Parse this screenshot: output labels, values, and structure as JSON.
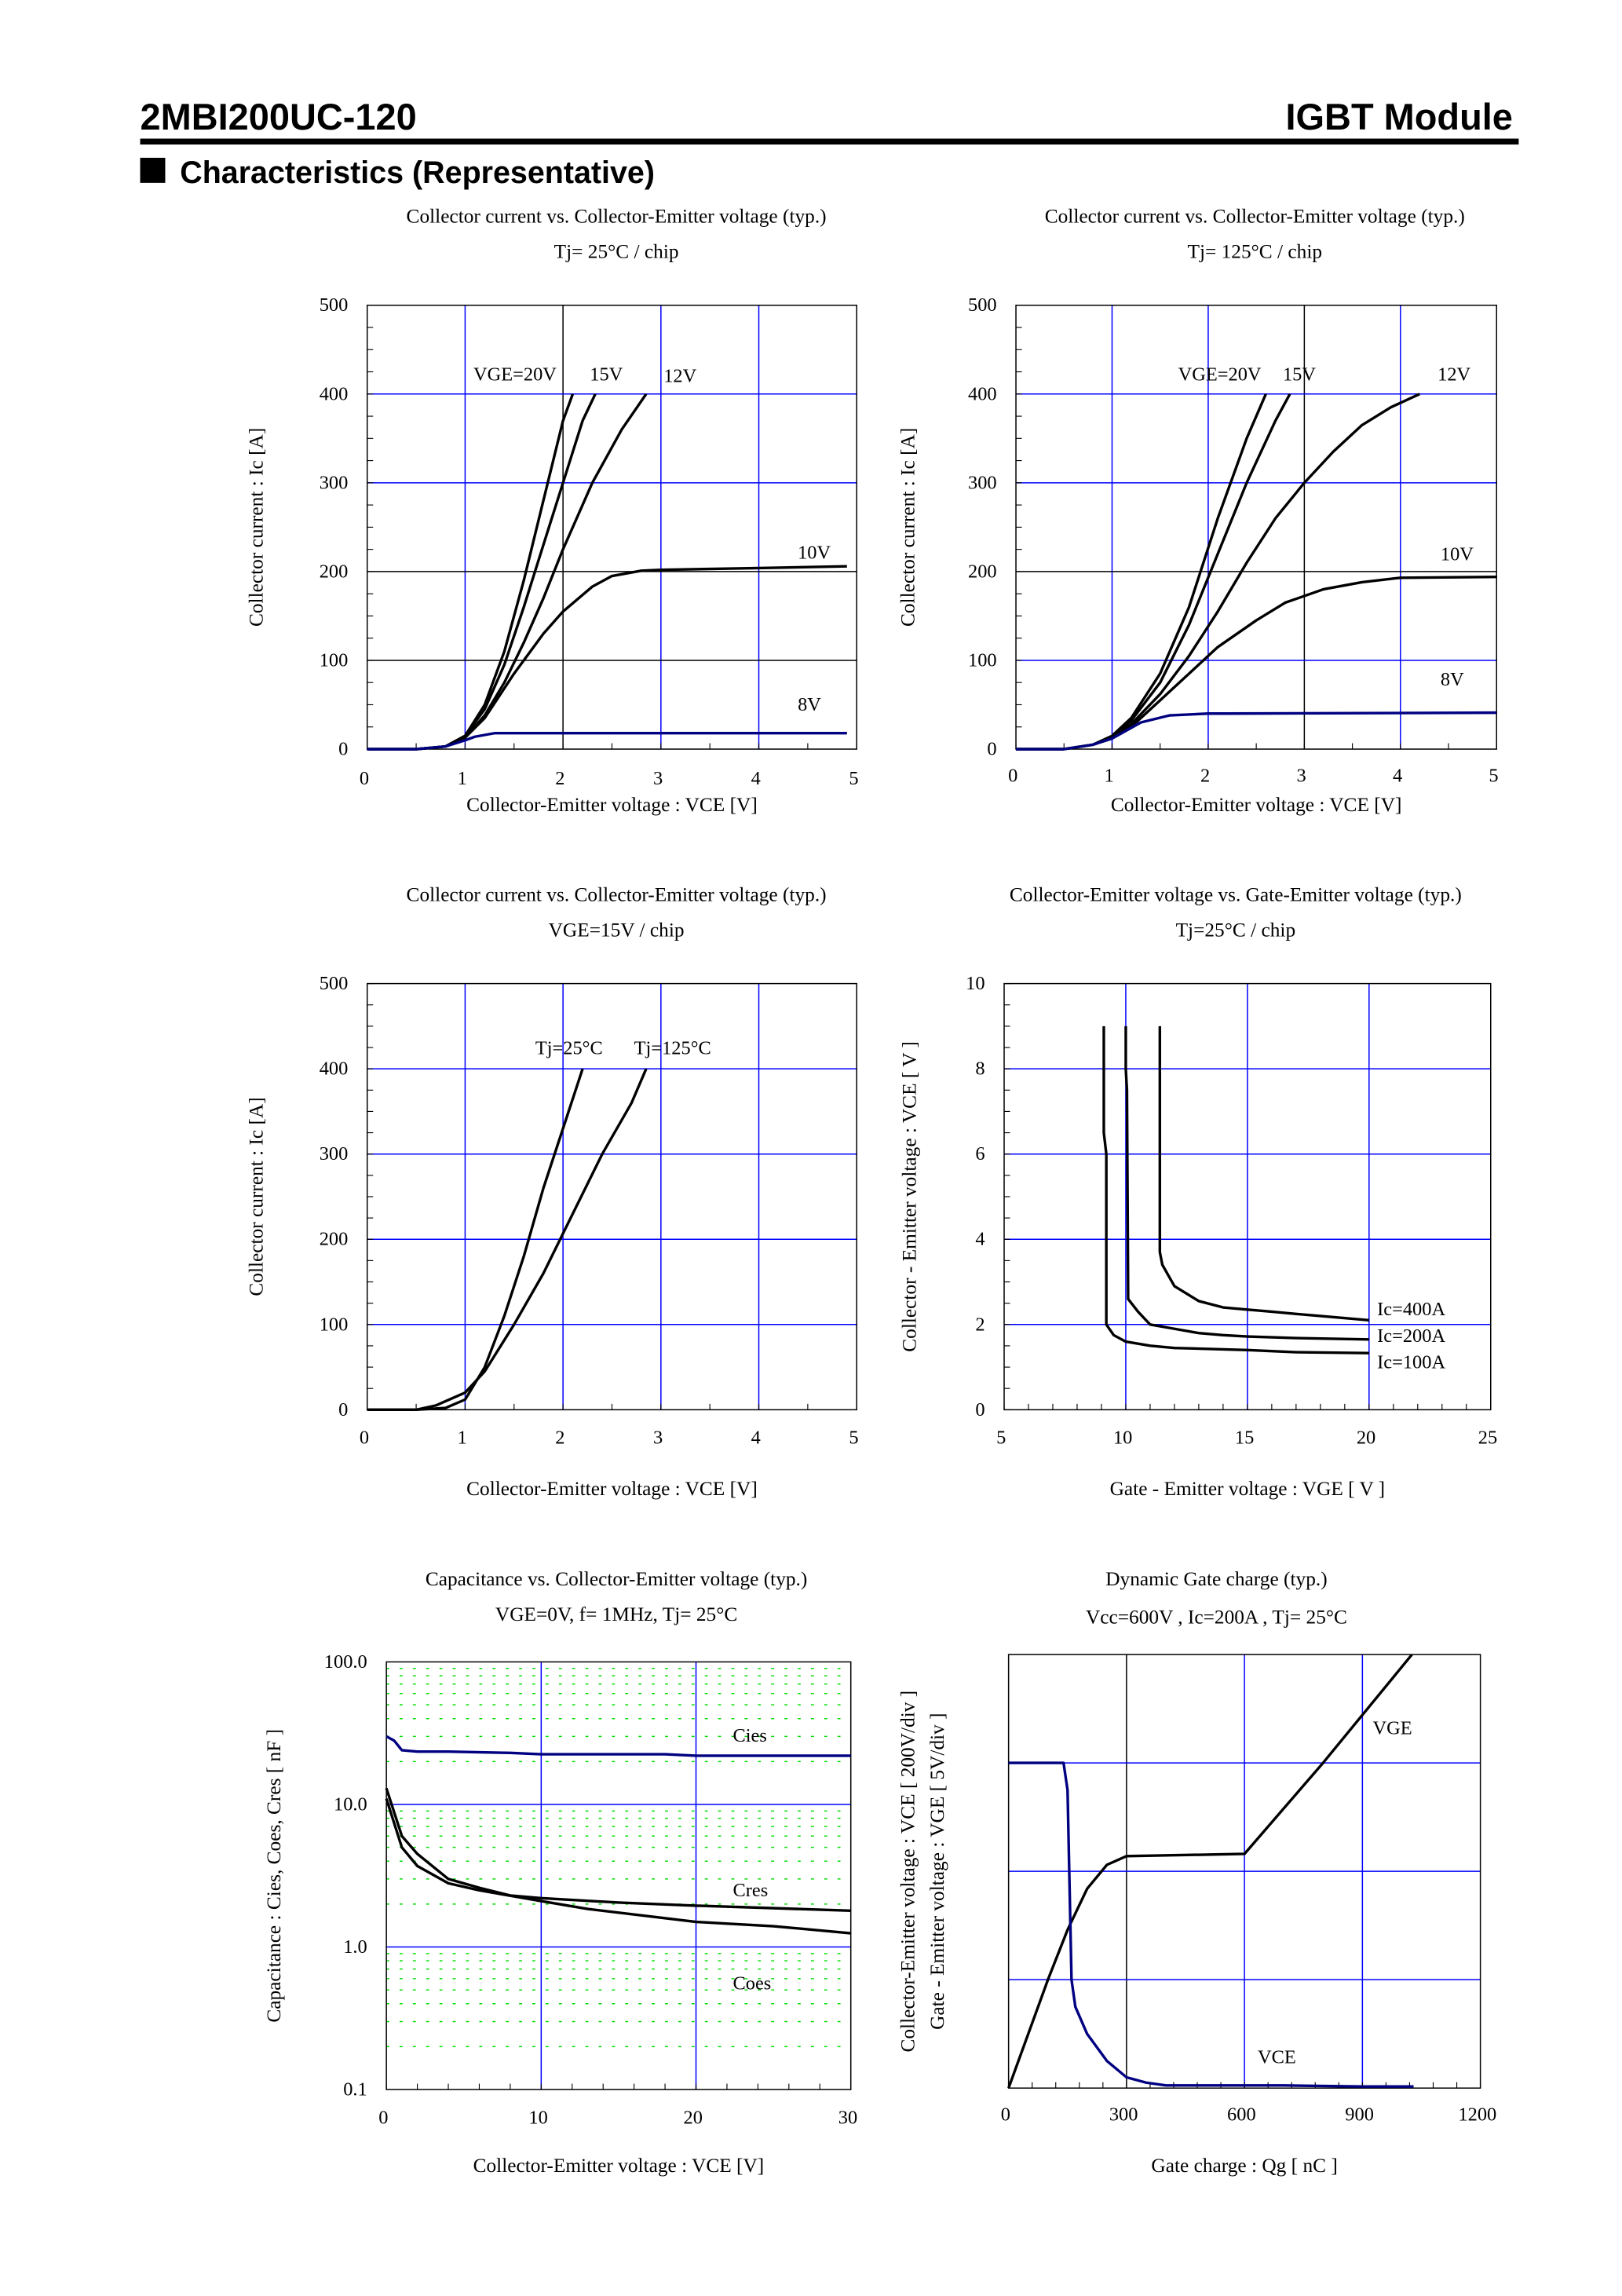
{
  "header": {
    "part_number": "2MBI200UC-120",
    "product_type": "IGBT Module",
    "section_title": "Characteristics (Representative)"
  },
  "colors": {
    "grid_blue": "#0000ff",
    "curve_black": "#000000",
    "curve_navy": "#000080",
    "minor_grid_green": "#00dd00"
  },
  "chart_data": [
    {
      "type": "line",
      "title": "Collector current vs. Collector-Emitter voltage (typ.)",
      "subtitle": "Tj= 25°C / chip",
      "xlabel": "Collector-Emitter voltage : VCE [V]",
      "ylabel": "Collector current : Ic [A]",
      "xlim": [
        0,
        5
      ],
      "ylim": [
        0,
        500
      ],
      "xticks": [
        "0",
        "1",
        "2",
        "3",
        "4",
        "5"
      ],
      "yticks": [
        "0",
        "100",
        "200",
        "300",
        "400",
        "500"
      ],
      "grid": true,
      "series": [
        {
          "name": "VGE=20V",
          "color": "#000000",
          "x": [
            0,
            0.5,
            0.8,
            1.0,
            1.2,
            1.4,
            1.6,
            1.8,
            2.0,
            2.1
          ],
          "y": [
            0,
            0,
            3,
            15,
            50,
            110,
            190,
            280,
            370,
            400
          ]
        },
        {
          "name": "15V",
          "color": "#000000",
          "x": [
            0,
            0.5,
            0.8,
            1.0,
            1.2,
            1.4,
            1.6,
            1.8,
            2.0,
            2.2,
            2.33
          ],
          "y": [
            0,
            0,
            3,
            15,
            45,
            95,
            160,
            230,
            300,
            370,
            400
          ]
        },
        {
          "name": "12V",
          "color": "#000000",
          "x": [
            0,
            0.5,
            0.8,
            1.0,
            1.2,
            1.4,
            1.6,
            1.8,
            2.0,
            2.3,
            2.6,
            2.85
          ],
          "y": [
            0,
            0,
            3,
            13,
            38,
            75,
            120,
            170,
            225,
            300,
            360,
            400
          ]
        },
        {
          "name": "10V",
          "color": "#000000",
          "x": [
            0,
            0.5,
            0.8,
            1.0,
            1.2,
            1.5,
            1.8,
            2.0,
            2.3,
            2.5,
            2.8,
            3.0,
            4.0,
            4.9
          ],
          "y": [
            0,
            0,
            3,
            13,
            35,
            85,
            130,
            155,
            183,
            195,
            201,
            202,
            204,
            206
          ]
        },
        {
          "name": "8V",
          "color": "#000080",
          "x": [
            0,
            0.5,
            0.8,
            1.0,
            1.1,
            1.3,
            2.0,
            3.0,
            4.9
          ],
          "y": [
            0,
            0,
            3,
            10,
            14,
            18,
            18,
            18,
            18
          ]
        }
      ]
    },
    {
      "type": "line",
      "title": "Collector current vs. Collector-Emitter voltage (typ.)",
      "subtitle": "Tj= 125°C / chip",
      "xlabel": "Collector-Emitter voltage : VCE [V]",
      "ylabel": "Collector current : Ic [A]",
      "xlim": [
        0,
        5
      ],
      "ylim": [
        0,
        500
      ],
      "xticks": [
        "0",
        "1",
        "2",
        "3",
        "4",
        "5"
      ],
      "yticks": [
        "0",
        "100",
        "200",
        "300",
        "400",
        "500"
      ],
      "grid": true,
      "series": [
        {
          "name": "VGE=20V",
          "color": "#000000",
          "x": [
            0,
            0.5,
            0.8,
            1.0,
            1.2,
            1.5,
            1.8,
            2.1,
            2.4,
            2.6
          ],
          "y": [
            0,
            0,
            5,
            15,
            35,
            85,
            160,
            260,
            350,
            400
          ]
        },
        {
          "name": "15V",
          "color": "#000000",
          "x": [
            0,
            0.5,
            0.8,
            1.0,
            1.2,
            1.5,
            1.8,
            2.1,
            2.4,
            2.7,
            2.85
          ],
          "y": [
            0,
            0,
            5,
            14,
            32,
            75,
            140,
            220,
            300,
            370,
            400
          ]
        },
        {
          "name": "12V",
          "color": "#000000",
          "x": [
            0,
            0.5,
            0.8,
            1.0,
            1.2,
            1.5,
            1.8,
            2.1,
            2.4,
            2.7,
            3.0,
            3.3,
            3.6,
            3.9,
            4.2
          ],
          "y": [
            0,
            0,
            5,
            13,
            28,
            62,
            105,
            155,
            210,
            260,
            300,
            335,
            365,
            385,
            400
          ]
        },
        {
          "name": "10V",
          "color": "#000000",
          "x": [
            0,
            0.5,
            0.8,
            1.0,
            1.2,
            1.5,
            1.8,
            2.1,
            2.5,
            2.8,
            3.2,
            3.6,
            4.0,
            5.0
          ],
          "y": [
            0,
            0,
            5,
            12,
            25,
            55,
            85,
            115,
            145,
            165,
            180,
            188,
            193,
            194
          ]
        },
        {
          "name": "8V",
          "color": "#000080",
          "x": [
            0,
            0.5,
            0.8,
            1.0,
            1.3,
            1.6,
            2.0,
            2.2,
            5.0
          ],
          "y": [
            0,
            0,
            5,
            12,
            30,
            38,
            40,
            40,
            41
          ]
        }
      ]
    },
    {
      "type": "line",
      "title": "Collector current vs. Collector-Emitter voltage (typ.)",
      "subtitle": "VGE=15V / chip",
      "xlabel": "Collector-Emitter voltage : VCE [V]",
      "ylabel": "Collector current : Ic [A]",
      "xlim": [
        0,
        5
      ],
      "ylim": [
        0,
        500
      ],
      "xticks": [
        "0",
        "1",
        "2",
        "3",
        "4",
        "5"
      ],
      "yticks": [
        "0",
        "100",
        "200",
        "300",
        "400",
        "500"
      ],
      "grid": true,
      "series": [
        {
          "name": "Tj=25°C",
          "color": "#000000",
          "x": [
            0,
            0.5,
            0.8,
            1.0,
            1.2,
            1.4,
            1.6,
            1.8,
            2.0,
            2.2
          ],
          "y": [
            0,
            0,
            2,
            12,
            50,
            110,
            180,
            260,
            330,
            400
          ]
        },
        {
          "name": "Tj=125°C",
          "color": "#000000",
          "x": [
            0,
            0.5,
            0.7,
            1.0,
            1.2,
            1.5,
            1.8,
            2.1,
            2.4,
            2.7,
            2.85
          ],
          "y": [
            0,
            0,
            5,
            20,
            45,
            100,
            160,
            230,
            300,
            360,
            400
          ]
        }
      ]
    },
    {
      "type": "line",
      "title": "Collector-Emitter voltage  vs. Gate-Emitter voltage (typ.)",
      "subtitle": "Tj=25°C / chip",
      "xlabel": "Gate - Emitter voltage  :  VGE  [ V ]",
      "ylabel": "Collector - Emitter voltage  :  VCE  [ V ]",
      "xlim": [
        5,
        25
      ],
      "ylim": [
        0,
        10
      ],
      "xticks": [
        "5",
        "10",
        "15",
        "20",
        "25"
      ],
      "yticks": [
        "0",
        "2",
        "4",
        "6",
        "8",
        "10"
      ],
      "grid": true,
      "series": [
        {
          "name": "Ic=400A",
          "color": "#000000",
          "x": [
            11.4,
            11.4,
            11.5,
            12,
            13,
            14,
            15,
            16,
            17,
            18,
            20
          ],
          "y": [
            9,
            3.7,
            3.4,
            2.9,
            2.55,
            2.4,
            2.35,
            2.3,
            2.25,
            2.2,
            2.1
          ]
        },
        {
          "name": "Ic=200A",
          "color": "#000000",
          "x": [
            10,
            10,
            10.05,
            10.1,
            10.5,
            11,
            12,
            13,
            14,
            15,
            17,
            20
          ],
          "y": [
            9,
            8,
            7.5,
            2.6,
            2.3,
            2.0,
            1.9,
            1.8,
            1.75,
            1.72,
            1.68,
            1.65
          ]
        },
        {
          "name": "Ic=100A",
          "color": "#000000",
          "x": [
            9.1,
            9.1,
            9.2,
            9.2,
            9.5,
            10,
            11,
            12,
            15,
            17,
            20
          ],
          "y": [
            9,
            6.5,
            6,
            2,
            1.75,
            1.6,
            1.5,
            1.45,
            1.4,
            1.35,
            1.33
          ]
        }
      ]
    },
    {
      "type": "line",
      "title": "Capacitance  vs.  Collector-Emitter voltage  (typ.)",
      "subtitle": "VGE=0V,  f= 1MHz,  Tj= 25°C",
      "xlabel": "Collector-Emitter voltage : VCE [V]",
      "ylabel": "Capacitance  :  Cies, Coes, Cres  [ nF ]",
      "xlim": [
        0,
        30
      ],
      "ylim": [
        0.1,
        100
      ],
      "yscale": "log",
      "xticks": [
        "0",
        "10",
        "20",
        "30"
      ],
      "yticks": [
        "0.1",
        "1.0",
        "10.0",
        "100.0"
      ],
      "grid": true,
      "series": [
        {
          "name": "Cies",
          "color": "#000080",
          "x": [
            0,
            0.5,
            1,
            2,
            4,
            8,
            10,
            18,
            20,
            30
          ],
          "y": [
            30,
            28,
            24,
            23.5,
            23.5,
            23,
            22.5,
            22.5,
            22,
            22
          ]
        },
        {
          "name": "Cres",
          "color": "#000000",
          "x": [
            0,
            1,
            2,
            4,
            6,
            8,
            10,
            15,
            20,
            30
          ],
          "y": [
            13,
            6,
            4.5,
            3,
            2.6,
            2.3,
            2.2,
            2.05,
            1.95,
            1.8
          ]
        },
        {
          "name": "Coes",
          "color": "#000000",
          "x": [
            0,
            1,
            2,
            4,
            6,
            10,
            13,
            20,
            25,
            30
          ],
          "y": [
            11,
            5,
            3.7,
            2.8,
            2.5,
            2.1,
            1.85,
            1.5,
            1.4,
            1.25
          ]
        }
      ]
    },
    {
      "type": "line",
      "title": "Dynamic Gate charge  (typ.)",
      "subtitle": "Vcc=600V , Ic=200A , Tj= 25°C",
      "xlabel": "Gate charge  :  Qg  [ nC ]",
      "ylabel": "Collector-Emitter voltage : VCE [ 200V/div ]",
      "ylabel2": "Gate - Emitter voltage  :  VGE     [ 5V/div ]",
      "xlim": [
        0,
        1200
      ],
      "ydivisions": 4,
      "xticks": [
        "0",
        "300",
        "600",
        "900",
        "1200"
      ],
      "grid": true,
      "series": [
        {
          "name": "VGE",
          "color": "#000000",
          "unit_per_div": 5,
          "x": [
            0,
            100,
            150,
            200,
            250,
            300,
            600,
            800,
            1026
          ],
          "y": [
            0,
            5,
            7.3,
            9.2,
            10.3,
            10.7,
            10.8,
            15,
            20
          ]
        },
        {
          "name": "VCE",
          "color": "#000080",
          "unit_per_div": 200,
          "x": [
            0,
            140,
            150,
            160,
            170,
            200,
            250,
            300,
            350,
            400,
            700,
            900,
            1030
          ],
          "y": [
            600,
            600,
            550,
            200,
            150,
            100,
            50,
            20,
            10,
            5,
            5,
            3,
            3
          ]
        }
      ]
    }
  ]
}
